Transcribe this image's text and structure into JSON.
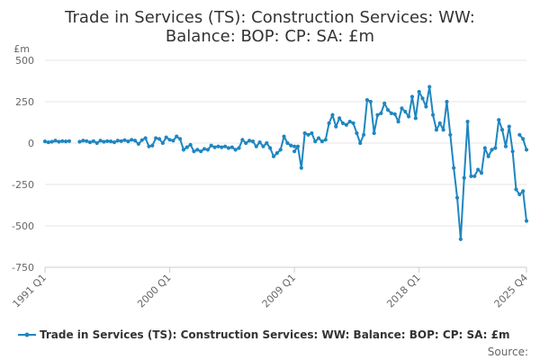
{
  "chart_data": {
    "type": "line",
    "title": "Trade in Services (TS): Construction Services: WW: Balance: BOP: CP: SA: £m",
    "title_lines": [
      "Trade in Services (TS): Construction Services: WW:",
      "Balance: BOP: CP: SA: £m"
    ],
    "ylabel": "£m",
    "xlabel": "",
    "ylim": [
      -750,
      500
    ],
    "yticks": [
      500,
      250,
      0,
      -250,
      -500,
      -750
    ],
    "ytick_labels": [
      "500",
      "250",
      "0",
      "-250",
      "-500",
      "-750"
    ],
    "x_range": [
      1991.0,
      2025.75
    ],
    "xticks": [
      1991.0,
      2000.0,
      2009.0,
      2018.0,
      2025.75
    ],
    "xtick_labels": [
      "1991 Q1",
      "2000 Q1",
      "2009 Q1",
      "2018 Q1",
      "2025 Q4"
    ],
    "grid": true,
    "legend": "bottom",
    "color": "#1f86c0",
    "series": [
      {
        "name": "Trade in Services (TS): Construction Services: WW: Balance: BOP: CP: SA: £m",
        "segments": [
          {
            "x": [
              1991.0,
              1991.25,
              1991.5,
              1991.75,
              1992.0,
              1992.25,
              1992.5,
              1992.75
            ],
            "y": [
              10,
              5,
              8,
              15,
              8,
              12,
              10,
              12
            ]
          },
          {
            "x": [
              1993.5,
              1993.75,
              1994.0,
              1994.25,
              1994.5,
              1994.75,
              1995.0,
              1995.25,
              1995.5,
              1995.75,
              1996.0,
              1996.25,
              1996.5,
              1996.75,
              1997.0,
              1997.25,
              1997.5,
              1997.75,
              1998.0,
              1998.25,
              1998.5,
              1998.75,
              1999.0,
              1999.25,
              1999.5,
              1999.75,
              2000.0,
              2000.25,
              2000.5,
              2000.75,
              2001.0,
              2001.25,
              2001.5,
              2001.75,
              2002.0,
              2002.25,
              2002.5,
              2002.75,
              2003.0,
              2003.25,
              2003.5,
              2003.75,
              2004.0,
              2004.25,
              2004.5,
              2004.75,
              2005.0,
              2005.25,
              2005.5,
              2005.75,
              2006.0,
              2006.25,
              2006.5,
              2006.75,
              2007.0,
              2007.25,
              2007.5,
              2007.75,
              2008.0,
              2008.25,
              2008.5,
              2008.75,
              2009.0
            ],
            "y": [
              8,
              15,
              12,
              5,
              12,
              0,
              15,
              8,
              12,
              10,
              5,
              15,
              12,
              18,
              10,
              20,
              15,
              -5,
              18,
              30,
              -20,
              -15,
              30,
              25,
              0,
              35,
              20,
              15,
              40,
              25,
              -40,
              -25,
              -10,
              -50,
              -40,
              -50,
              -35,
              -40,
              -15,
              -25,
              -20,
              -25,
              -20,
              -30,
              -25,
              -40,
              -30,
              20,
              0,
              15,
              10,
              -20,
              5,
              -20,
              0,
              -30,
              -80,
              -60,
              -40,
              40,
              0,
              -15,
              -20
            ]
          },
          {
            "x": [
              2009.0,
              2009.25,
              2009.5,
              2009.75,
              2010.0,
              2010.25,
              2010.5,
              2010.75,
              2011.0,
              2011.25,
              2011.5,
              2011.75,
              2012.0,
              2012.25,
              2012.5,
              2012.75,
              2013.0,
              2013.25,
              2013.5,
              2013.75,
              2014.0,
              2014.25,
              2014.5,
              2014.75,
              2015.0,
              2015.25,
              2015.5,
              2015.75,
              2016.0,
              2016.25,
              2016.5,
              2016.75,
              2017.0,
              2017.25,
              2017.5,
              2017.75,
              2018.0,
              2018.25,
              2018.5,
              2018.75,
              2019.0,
              2019.25,
              2019.5,
              2019.75,
              2020.0,
              2020.25,
              2020.5,
              2020.75,
              2021.0,
              2021.25,
              2021.5,
              2021.75,
              2022.0,
              2022.25,
              2022.5,
              2022.75,
              2023.0,
              2023.25,
              2023.5,
              2023.75,
              2024.0,
              2024.25,
              2024.5,
              2024.75,
              2025.0,
              2025.25,
              2025.5,
              2025.75
            ],
            "y": [
              -50,
              -20,
              -150,
              60,
              50,
              60,
              10,
              30,
              10,
              20,
              120,
              170,
              100,
              150,
              120,
              110,
              130,
              120,
              60,
              0,
              50,
              260,
              250,
              60,
              170,
              180,
              240,
              200,
              180,
              175,
              130,
              210,
              190,
              160,
              280,
              150,
              310,
              270,
              220,
              340,
              170,
              80,
              120,
              80,
              250,
              50,
              -150,
              -330,
              -580,
              -210,
              130,
              -200,
              -200,
              -160,
              -180,
              -30,
              -80,
              -40,
              -30,
              140,
              80,
              -20,
              100,
              -50,
              -280,
              -310,
              -290,
              -470
            ]
          },
          {
            "x": [
              2025.25,
              2025.5,
              2025.75
            ],
            "y": [
              50,
              25,
              -40
            ]
          }
        ]
      }
    ]
  },
  "footer": {
    "source_label": "Source:"
  }
}
